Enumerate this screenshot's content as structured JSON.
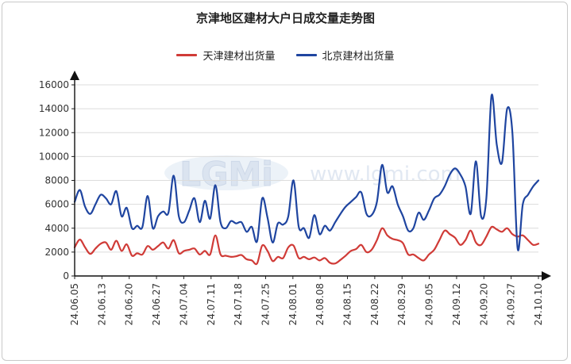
{
  "chart_data": {
    "type": "line",
    "title": "京津地区建材大户日成交量走势图",
    "ylim": [
      0,
      16000
    ],
    "yticks": [
      0,
      2000,
      4000,
      6000,
      8000,
      10000,
      12000,
      14000,
      16000
    ],
    "x_ticks": [
      "24.06.05",
      "24.06.13",
      "24.06.20",
      "24.06.27",
      "24.07.04",
      "24.07.11",
      "24.07.18",
      "24.07.25",
      "24.08.01",
      "24.08.08",
      "24.08.15",
      "24.08.22",
      "24.08.29",
      "24.09.05",
      "24.09.12",
      "24.09.20",
      "24.09.27",
      "24.10.10"
    ],
    "grid": true,
    "legend_position": "top-center",
    "series": [
      {
        "name": "天津建材出货量",
        "color": "#d03b37",
        "values": [
          2400,
          3050,
          2400,
          1850,
          2300,
          2700,
          2800,
          2200,
          2950,
          2100,
          2650,
          1700,
          1900,
          1800,
          2500,
          2200,
          2500,
          2800,
          2300,
          3000,
          1900,
          2100,
          2200,
          2300,
          1800,
          2100,
          1800,
          3400,
          1800,
          1700,
          1600,
          1650,
          1750,
          1400,
          1300,
          1050,
          2550,
          2100,
          1250,
          1600,
          1500,
          2400,
          2550,
          1500,
          1600,
          1400,
          1550,
          1300,
          1500,
          1100,
          1050,
          1350,
          1700,
          2100,
          2250,
          2600,
          2000,
          2200,
          3000,
          4000,
          3400,
          3100,
          3000,
          2750,
          1800,
          1800,
          1500,
          1300,
          1800,
          2200,
          3000,
          3800,
          3500,
          3200,
          2600,
          3000,
          3800,
          2800,
          2600,
          3300,
          4100,
          3900,
          3700,
          4000,
          3500,
          3300,
          3400,
          3000,
          2600,
          2700
        ]
      },
      {
        "name": "北京建材出货量",
        "color": "#1f45a0",
        "values": [
          6200,
          7200,
          5800,
          5200,
          6000,
          6800,
          6500,
          6000,
          7100,
          5000,
          5700,
          4000,
          4200,
          4100,
          6700,
          4000,
          5000,
          5400,
          5300,
          8400,
          5000,
          4500,
          5500,
          6500,
          4500,
          6300,
          4800,
          7600,
          4500,
          4000,
          4600,
          4400,
          4500,
          3700,
          4100,
          2900,
          6500,
          4900,
          2800,
          4400,
          4300,
          5000,
          8000,
          4100,
          4000,
          3200,
          5100,
          3500,
          4200,
          3800,
          4500,
          5200,
          5800,
          6200,
          6600,
          7000,
          5200,
          5100,
          6200,
          9300,
          7000,
          7500,
          6000,
          5000,
          3800,
          4000,
          5300,
          4700,
          5500,
          6500,
          6800,
          7500,
          8500,
          9000,
          8500,
          7500,
          5200,
          9600,
          5000,
          6500,
          15100,
          11000,
          9500,
          14000,
          12000,
          2300,
          6000,
          6800,
          7500,
          8000
        ]
      }
    ]
  },
  "watermark": {
    "logo_text": "LGMi",
    "url_text": "www.lgmi.com"
  }
}
